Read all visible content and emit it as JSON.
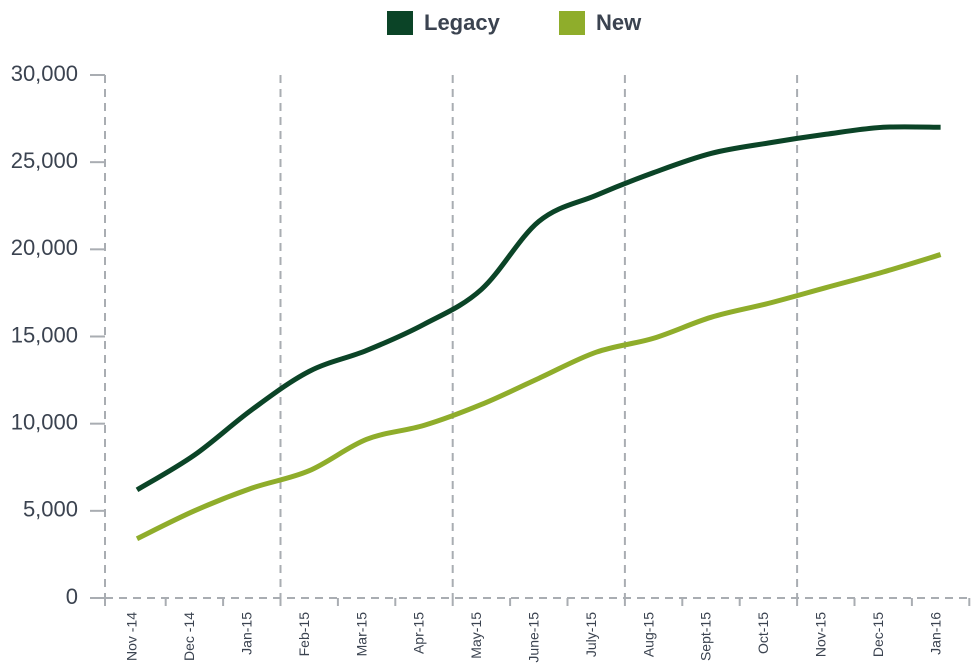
{
  "chart_data": {
    "type": "line",
    "categories": [
      "Nov -14",
      "Dec -14",
      "Jan-15",
      "Feb-15",
      "Mar-15",
      "Apr-15",
      "May-15",
      "June-15",
      "July-15",
      "Aug-15",
      "Sept-15",
      "Oct-15",
      "Nov-15",
      "Dec-15",
      "Jan-16"
    ],
    "series": [
      {
        "name": "Legacy",
        "color": "#0b4427",
        "values": [
          6200,
          8200,
          10800,
          13000,
          14200,
          15700,
          17700,
          21600,
          23100,
          24400,
          25500,
          26100,
          26600,
          27000,
          27000
        ]
      },
      {
        "name": "New",
        "color": "#8fad2b",
        "values": [
          3400,
          5000,
          6300,
          7300,
          9100,
          9900,
          11100,
          12600,
          14100,
          14900,
          16100,
          16900,
          17800,
          18700,
          19700
        ]
      }
    ],
    "ylim": [
      0,
      30000
    ],
    "yticks": [
      0,
      {
        "value": 5000,
        "label": "5,000"
      },
      {
        "value": 10000,
        "label": "10,000"
      },
      {
        "value": 15000,
        "label": "15,000"
      },
      {
        "value": 20000,
        "label": "20,000"
      },
      {
        "value": 25000,
        "label": "25,000"
      },
      {
        "value": 30000,
        "label": "30,000"
      }
    ],
    "legend": "top"
  }
}
